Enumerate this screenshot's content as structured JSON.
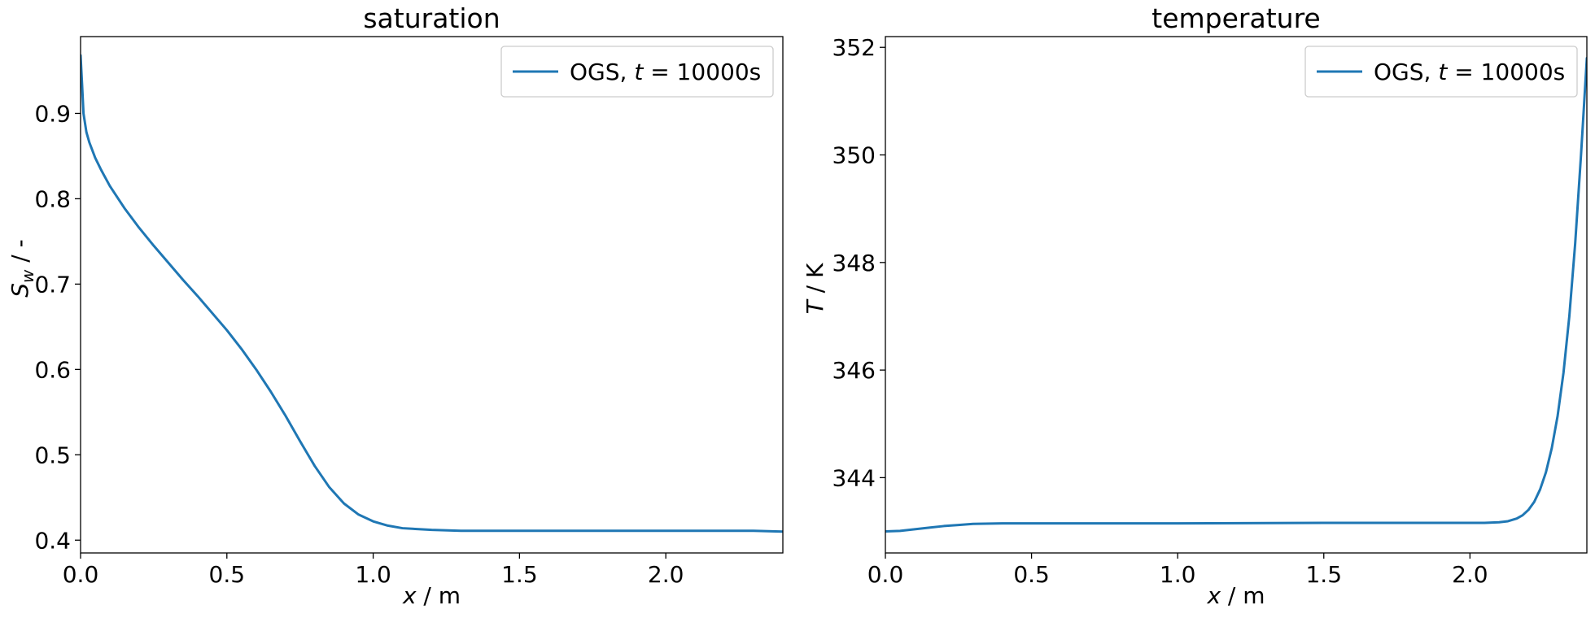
{
  "chart_data": [
    {
      "type": "line",
      "title": "saturation",
      "xlabel": {
        "italic": "x",
        "rest": " / m"
      },
      "ylabel": {
        "main": "S",
        "sub": "w",
        "rest": " / -"
      },
      "xlim": [
        0.0,
        2.4
      ],
      "ylim": [
        0.385,
        0.99
      ],
      "xticks": [
        0.0,
        0.5,
        1.0,
        1.5,
        2.0
      ],
      "xtick_labels": [
        "0.0",
        "0.5",
        "1.0",
        "1.5",
        "2.0"
      ],
      "yticks": [
        0.4,
        0.5,
        0.6,
        0.7,
        0.8,
        0.9
      ],
      "ytick_labels": [
        "0.4",
        "0.5",
        "0.6",
        "0.7",
        "0.8",
        "0.9"
      ],
      "grid": false,
      "legend_placement": "top-right",
      "series": [
        {
          "name": {
            "pre": "OGS, ",
            "italic": "t",
            "post": " = 10000s"
          },
          "color": "#1f77b4",
          "x": [
            0.0,
            0.005,
            0.01,
            0.02,
            0.03,
            0.05,
            0.07,
            0.1,
            0.15,
            0.2,
            0.25,
            0.3,
            0.35,
            0.4,
            0.45,
            0.5,
            0.55,
            0.6,
            0.65,
            0.7,
            0.75,
            0.8,
            0.85,
            0.9,
            0.95,
            1.0,
            1.05,
            1.1,
            1.15,
            1.2,
            1.3,
            1.4,
            1.5,
            1.6,
            1.8,
            2.0,
            2.2,
            2.3,
            2.35,
            2.4
          ],
          "y": [
            0.968,
            0.935,
            0.9,
            0.878,
            0.866,
            0.848,
            0.834,
            0.815,
            0.789,
            0.766,
            0.745,
            0.725,
            0.705,
            0.686,
            0.666,
            0.646,
            0.624,
            0.6,
            0.574,
            0.546,
            0.516,
            0.487,
            0.462,
            0.443,
            0.43,
            0.422,
            0.417,
            0.414,
            0.413,
            0.412,
            0.411,
            0.411,
            0.411,
            0.411,
            0.411,
            0.411,
            0.411,
            0.411,
            0.4105,
            0.41
          ]
        }
      ]
    },
    {
      "type": "line",
      "title": "temperature",
      "xlabel": {
        "italic": "x",
        "rest": " / m"
      },
      "ylabel": {
        "main": "T",
        "sub": "",
        "rest": " / K"
      },
      "xlim": [
        0.0,
        2.4
      ],
      "ylim": [
        342.6,
        352.2
      ],
      "xticks": [
        0.0,
        0.5,
        1.0,
        1.5,
        2.0
      ],
      "xtick_labels": [
        "0.0",
        "0.5",
        "1.0",
        "1.5",
        "2.0"
      ],
      "yticks": [
        344,
        346,
        348,
        350,
        352
      ],
      "ytick_labels": [
        "344",
        "346",
        "348",
        "350",
        "352"
      ],
      "grid": false,
      "legend_placement": "top-right",
      "series": [
        {
          "name": {
            "pre": "OGS, ",
            "italic": "t",
            "post": " = 10000s"
          },
          "color": "#1f77b4",
          "x": [
            0.0,
            0.05,
            0.1,
            0.15,
            0.2,
            0.25,
            0.3,
            0.4,
            0.5,
            0.7,
            1.0,
            1.5,
            2.0,
            2.05,
            2.1,
            2.13,
            2.16,
            2.18,
            2.2,
            2.22,
            2.24,
            2.26,
            2.28,
            2.3,
            2.32,
            2.34,
            2.36,
            2.38,
            2.4
          ],
          "y": [
            343.0,
            343.01,
            343.04,
            343.07,
            343.1,
            343.12,
            343.14,
            343.15,
            343.15,
            343.15,
            343.15,
            343.16,
            343.16,
            343.16,
            343.17,
            343.19,
            343.24,
            343.3,
            343.4,
            343.55,
            343.78,
            344.1,
            344.55,
            345.15,
            345.95,
            347.0,
            348.35,
            350.0,
            351.8
          ]
        }
      ]
    }
  ]
}
